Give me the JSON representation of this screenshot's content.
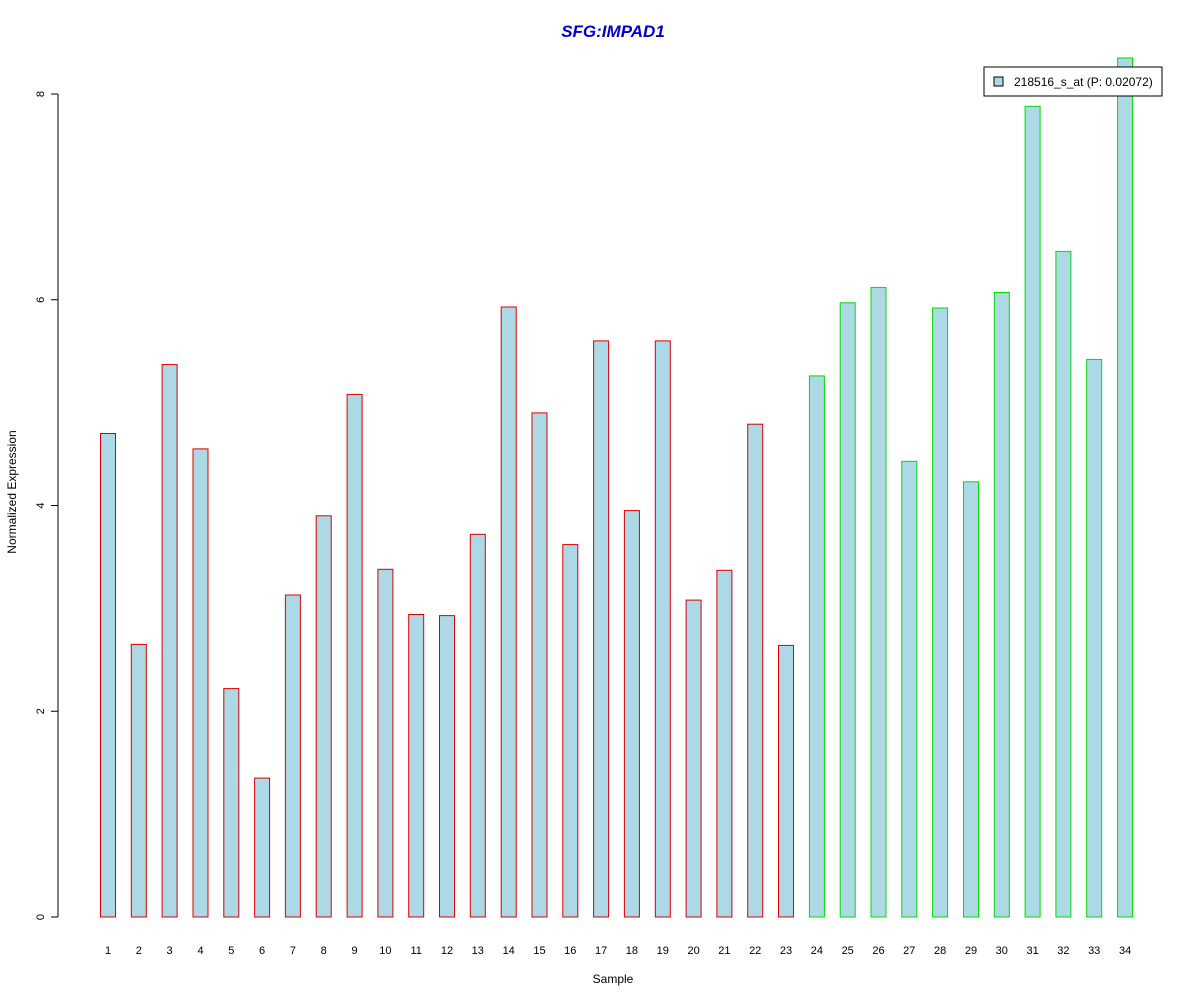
{
  "chart_data": {
    "type": "bar",
    "title": "SFG:IMPAD1",
    "xlabel": "Sample",
    "ylabel": "Normalized Expression",
    "ylim": [
      0,
      8
    ],
    "yticks": [
      0,
      2,
      4,
      6,
      8
    ],
    "categories": [
      "1",
      "2",
      "3",
      "4",
      "5",
      "6",
      "7",
      "8",
      "9",
      "10",
      "11",
      "12",
      "13",
      "14",
      "15",
      "16",
      "17",
      "18",
      "19",
      "20",
      "21",
      "22",
      "23",
      "24",
      "25",
      "26",
      "27",
      "28",
      "29",
      "30",
      "31",
      "32",
      "33",
      "34"
    ],
    "series": [
      {
        "name": "218516_s_at (P: 0.02072)",
        "values": [
          4.7,
          2.65,
          5.37,
          4.55,
          2.22,
          1.35,
          3.13,
          3.9,
          5.08,
          3.38,
          2.94,
          2.93,
          3.72,
          5.93,
          4.9,
          3.62,
          5.6,
          3.95,
          5.6,
          3.08,
          3.37,
          4.79,
          2.64,
          5.26,
          5.97,
          6.12,
          4.43,
          5.92,
          4.23,
          6.07,
          7.88,
          6.47,
          5.42,
          8.35
        ]
      }
    ],
    "groups": [
      {
        "from": 1,
        "to": 23,
        "border_color": "#dd0000"
      },
      {
        "from": 24,
        "to": 34,
        "border_color": "#00dd00"
      }
    ],
    "bar_fill": "#add8e6",
    "grid": false,
    "legend": {
      "placement": "top-right",
      "label": "218516_s_at (P: 0.02072)"
    }
  }
}
